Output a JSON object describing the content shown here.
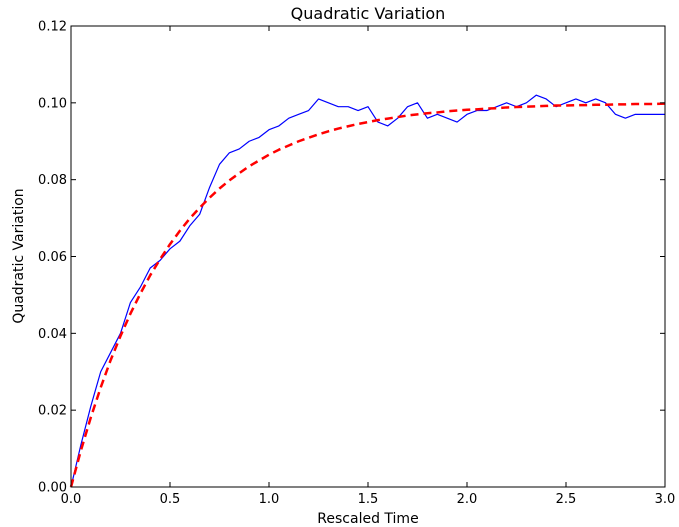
{
  "chart_data": {
    "type": "line",
    "title": "Quadratic Variation",
    "xlabel": "Rescaled Time",
    "ylabel": "Quadratic Variation",
    "xlim": [
      0.0,
      3.0
    ],
    "ylim": [
      0.0,
      0.12
    ],
    "grid": false,
    "legend": "none",
    "xticks": [
      "0.0",
      "0.5",
      "1.0",
      "1.5",
      "2.0",
      "2.5",
      "3.0"
    ],
    "yticks": [
      "0.00",
      "0.02",
      "0.04",
      "0.06",
      "0.08",
      "0.10",
      "0.12"
    ],
    "series": [
      {
        "color": "#0000ff",
        "style": "solid",
        "x": [
          0.0,
          0.05,
          0.1,
          0.15,
          0.2,
          0.25,
          0.3,
          0.35,
          0.4,
          0.45,
          0.5,
          0.55,
          0.6,
          0.65,
          0.7,
          0.75,
          0.8,
          0.85,
          0.9,
          0.95,
          1.0,
          1.05,
          1.1,
          1.15,
          1.2,
          1.25,
          1.3,
          1.35,
          1.4,
          1.45,
          1.5,
          1.55,
          1.6,
          1.65,
          1.7,
          1.75,
          1.8,
          1.85,
          1.9,
          1.95,
          2.0,
          2.05,
          2.1,
          2.15,
          2.2,
          2.25,
          2.3,
          2.35,
          2.4,
          2.45,
          2.5,
          2.55,
          2.6,
          2.65,
          2.7,
          2.75,
          2.8,
          2.85,
          2.9,
          2.95,
          3.0
        ],
        "y": [
          0.0,
          0.011,
          0.021,
          0.03,
          0.035,
          0.04,
          0.048,
          0.052,
          0.057,
          0.059,
          0.062,
          0.064,
          0.068,
          0.071,
          0.078,
          0.084,
          0.087,
          0.088,
          0.09,
          0.091,
          0.093,
          0.094,
          0.096,
          0.097,
          0.098,
          0.101,
          0.1,
          0.099,
          0.099,
          0.098,
          0.099,
          0.095,
          0.094,
          0.096,
          0.099,
          0.1,
          0.096,
          0.097,
          0.096,
          0.095,
          0.097,
          0.098,
          0.098,
          0.099,
          0.1,
          0.099,
          0.1,
          0.102,
          0.101,
          0.099,
          0.1,
          0.101,
          0.1,
          0.101,
          0.1,
          0.097,
          0.096,
          0.097,
          0.097,
          0.097,
          0.097
        ]
      },
      {
        "color": "#ff0000",
        "style": "dashed",
        "x": [
          0.0,
          0.05,
          0.1,
          0.15,
          0.2,
          0.25,
          0.3,
          0.35,
          0.4,
          0.45,
          0.5,
          0.55,
          0.6,
          0.65,
          0.7,
          0.75,
          0.8,
          0.85,
          0.9,
          0.95,
          1.0,
          1.05,
          1.1,
          1.15,
          1.2,
          1.25,
          1.3,
          1.35,
          1.4,
          1.45,
          1.5,
          1.55,
          1.6,
          1.65,
          1.7,
          1.75,
          1.8,
          1.85,
          1.9,
          1.95,
          2.0,
          2.05,
          2.1,
          2.15,
          2.2,
          2.25,
          2.3,
          2.35,
          2.4,
          2.45,
          2.5,
          2.55,
          2.6,
          2.65,
          2.7,
          2.75,
          2.8,
          2.85,
          2.9,
          2.95,
          3.0
        ],
        "y": [
          0.0,
          0.0095,
          0.0181,
          0.0259,
          0.033,
          0.0393,
          0.0451,
          0.0503,
          0.0551,
          0.0593,
          0.0632,
          0.0667,
          0.0699,
          0.0727,
          0.0753,
          0.0777,
          0.0798,
          0.0817,
          0.0835,
          0.085,
          0.0865,
          0.0878,
          0.0889,
          0.09,
          0.0909,
          0.0918,
          0.0926,
          0.0933,
          0.0939,
          0.0945,
          0.095,
          0.0955,
          0.0959,
          0.0963,
          0.0967,
          0.097,
          0.0973,
          0.0975,
          0.0978,
          0.098,
          0.0982,
          0.0983,
          0.0985,
          0.0986,
          0.0988,
          0.0989,
          0.099,
          0.0991,
          0.0992,
          0.0993,
          0.0993,
          0.0994,
          0.0994,
          0.0995,
          0.0995,
          0.0996,
          0.0996,
          0.0997,
          0.0997,
          0.0997,
          0.0998
        ]
      }
    ]
  }
}
